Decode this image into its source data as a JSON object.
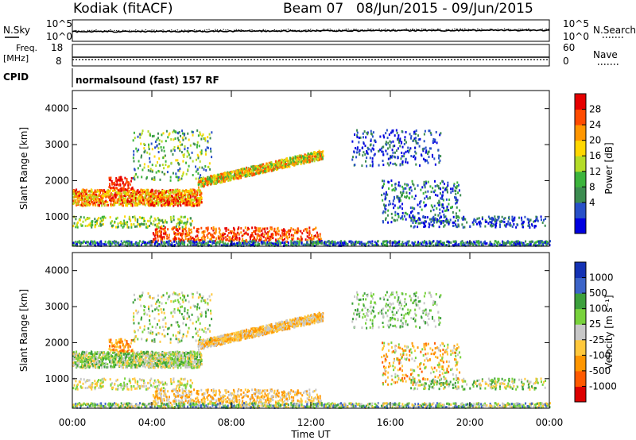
{
  "header": {
    "station": "Kodiak (fitACF)",
    "beam": "Beam 07",
    "date_range": "08/Jun/2015 - 09/Jun/2015"
  },
  "panels": {
    "nsky": {
      "label": "N.Sky",
      "right_label": "N.Search",
      "left_ticks": [
        "10^5",
        "10^0"
      ],
      "right_ticks": [
        "10^5",
        "10^0"
      ],
      "legend_style": "dotted"
    },
    "freq": {
      "label_line1": "Freq.",
      "label_line2": "[MHz]",
      "right_label": "Nave",
      "left_ticks": [
        "18",
        "8"
      ],
      "right_ticks": [
        "60",
        "0"
      ],
      "legend_style": "dotted"
    },
    "cpid": {
      "label": "CPID",
      "text": "normalsound (fast) 157 RF"
    }
  },
  "chart_data": [
    {
      "type": "heatmap",
      "title": "Power",
      "ylabel": "Slant Range [km]",
      "ylim": [
        180,
        4500
      ],
      "yticks": [
        1000,
        2000,
        3000,
        4000
      ],
      "colorbar_label": "Power [dB]",
      "colorbar_ticks": [
        "28",
        "24",
        "20",
        "16",
        "12",
        "8",
        "4"
      ],
      "colorbar_colors": [
        "#0000e0",
        "#2850c8",
        "#3c8c50",
        "#3cb43c",
        "#b4dc28",
        "#ffd700",
        "#ff9600",
        "#ff4b00",
        "#e60000"
      ],
      "features": [
        {
          "t_start": 0.0,
          "t_end": 6.5,
          "range_start": 1300,
          "range_end": 1800,
          "level": "high"
        },
        {
          "t_start": 6.5,
          "t_end": 12.5,
          "range_start": 1800,
          "range_end": 2800,
          "level": "medium"
        },
        {
          "t_start": 4.0,
          "t_end": 12.5,
          "range_start": 300,
          "range_end": 700,
          "level": "very high"
        },
        {
          "t_start": 14.0,
          "t_end": 20.0,
          "range_start": 800,
          "range_end": 3400,
          "level": "low"
        },
        {
          "t_start": 0.0,
          "t_end": 24.0,
          "range_start": 180,
          "range_end": 300,
          "level": "low"
        }
      ]
    },
    {
      "type": "heatmap",
      "title": "Velocity",
      "ylabel": "Slant Range [km]",
      "xlabel": "Time UT",
      "ylim": [
        180,
        4500
      ],
      "yticks": [
        1000,
        2000,
        3000,
        4000
      ],
      "xticks": [
        "00:00",
        "04:00",
        "08:00",
        "12:00",
        "16:00",
        "20:00",
        "00:00"
      ],
      "colorbar_label": "Velocity [m s⁻¹]",
      "colorbar_ticks": [
        "1000",
        "500",
        "100",
        "25",
        "-25",
        "-100",
        "-500",
        "-1000"
      ],
      "colorbar_colors": [
        "#dc0000",
        "#ff5a00",
        "#ff9600",
        "#ffc83c",
        "#c8c8c8",
        "#78d23c",
        "#3ca03c",
        "#3c64c8",
        "#1432b4"
      ]
    }
  ]
}
